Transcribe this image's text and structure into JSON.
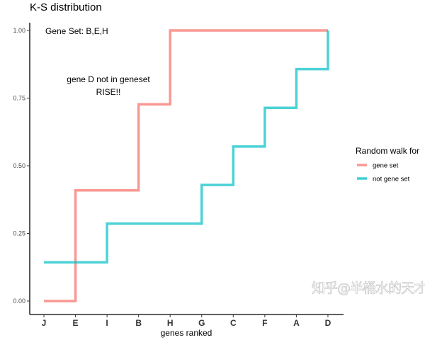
{
  "chart_data": {
    "type": "line",
    "step": true,
    "title": "K-S distribution",
    "xlabel": "genes ranked",
    "ylabel": "",
    "categories": [
      "J",
      "E",
      "I",
      "B",
      "H",
      "G",
      "C",
      "F",
      "A",
      "D"
    ],
    "ylim": [
      0,
      1
    ],
    "yticks": [
      "0.00",
      "0.25",
      "0.50",
      "0.75",
      "1.00"
    ],
    "grid": false,
    "legend": {
      "title": "Random walk for",
      "placement": "right"
    },
    "series": [
      {
        "name": "gene set",
        "color": "#F8766D",
        "values": [
          0,
          0.409,
          0.409,
          0.727,
          1,
          1,
          1,
          1,
          1,
          1
        ]
      },
      {
        "name": "not gene set",
        "color": "#00BFC4",
        "values": [
          0.143,
          0.143,
          0.286,
          0.286,
          0.286,
          0.429,
          0.571,
          0.714,
          0.857,
          1
        ]
      }
    ],
    "annotations": [
      "Gene Set: B,E,H",
      "gene D  not in geneset",
      "RISE!!"
    ]
  },
  "watermark": "知乎@半桶水的天才"
}
